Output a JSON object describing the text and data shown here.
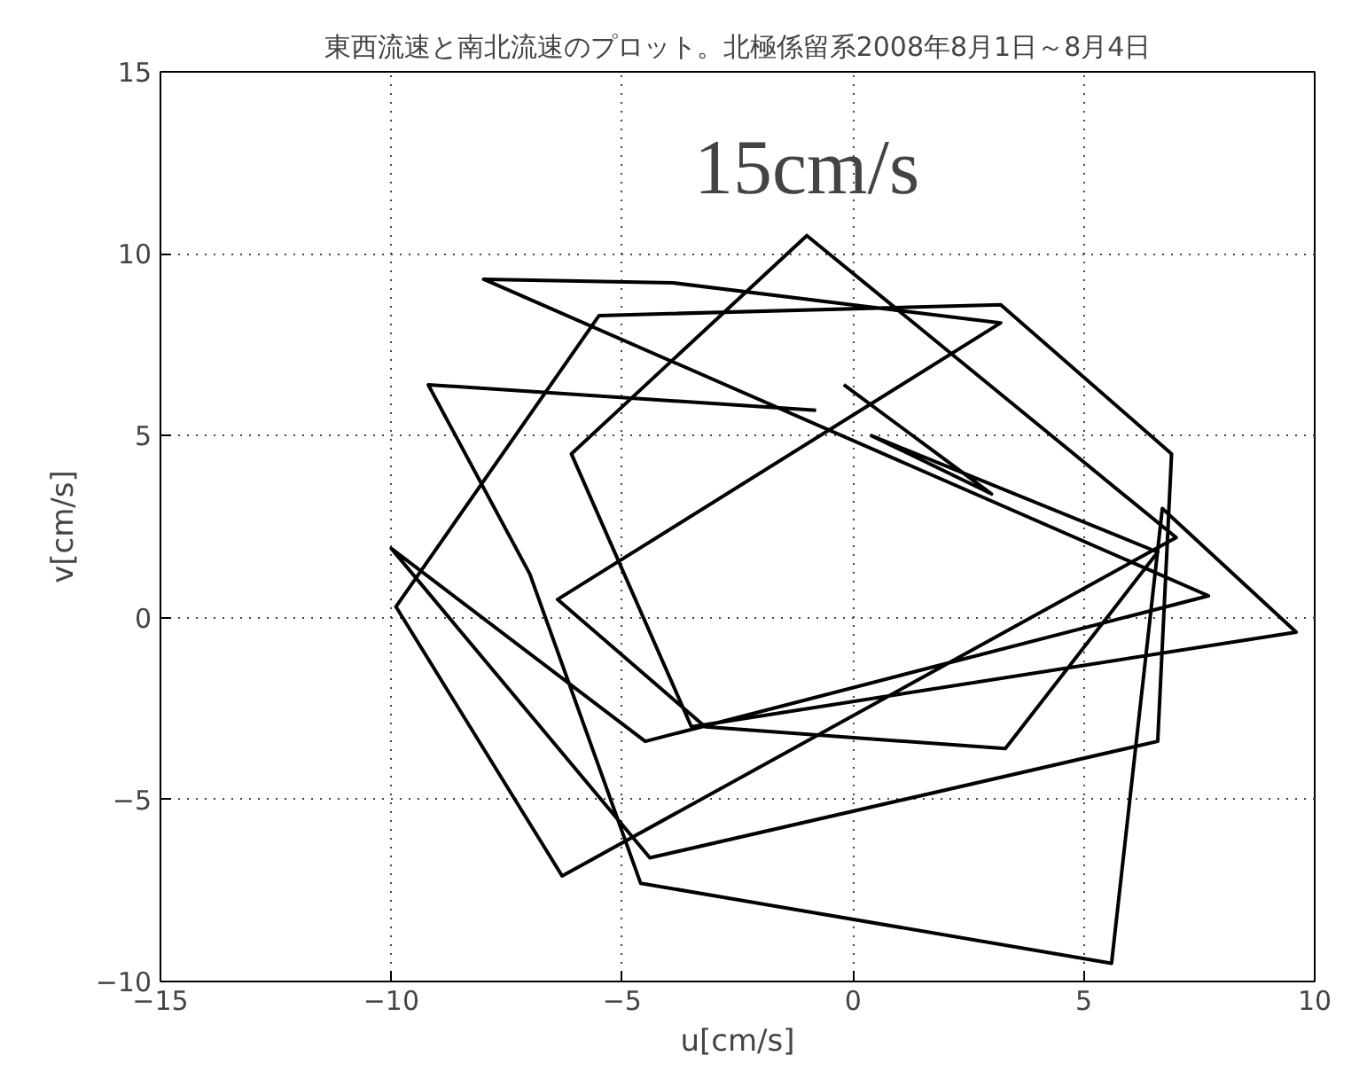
{
  "chart_data": {
    "type": "line",
    "title": "東西流速と南北流速のプロット。北極係留系2008年8月1日～8月4日",
    "xlabel": "u[cm/s]",
    "ylabel": "v[cm/s]",
    "x": [
      -0.8,
      -9.2,
      -7.0,
      -4.6,
      5.6,
      6.7,
      9.6,
      -3.5,
      -6.1,
      -1.0,
      7.0,
      -6.3,
      -9.9,
      -5.5,
      3.2,
      6.9,
      6.6,
      -4.4,
      -10.0,
      -4.5,
      7.7,
      -8.0,
      -3.9,
      3.2,
      -6.4,
      -3.2,
      3.3,
      6.6,
      0.4,
      3.0,
      -0.2
    ],
    "series": [
      {
        "color": "#000000",
        "values": [
          5.7,
          6.4,
          1.2,
          -7.3,
          -9.5,
          3.0,
          -0.4,
          -3.0,
          4.5,
          10.5,
          2.2,
          -7.1,
          0.3,
          8.3,
          8.6,
          4.5,
          -3.4,
          -6.6,
          1.9,
          -3.4,
          0.6,
          9.3,
          9.2,
          8.1,
          0.5,
          -3.0,
          -3.6,
          1.8,
          5.0,
          3.4,
          6.4
        ]
      }
    ],
    "annotations": [
      "15cm/s"
    ],
    "xlim": [
      -15,
      10
    ],
    "ylim": [
      -10,
      15
    ],
    "xticks": [
      -15,
      -10,
      -5,
      0,
      5,
      10
    ],
    "yticks": [
      -10,
      -5,
      0,
      5,
      10,
      15
    ],
    "grid": true,
    "line_style": "solid",
    "marker": "none"
  }
}
